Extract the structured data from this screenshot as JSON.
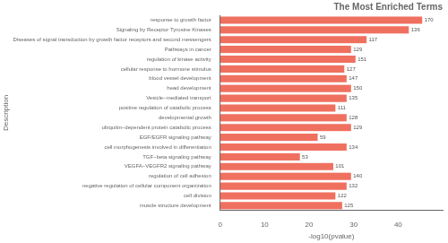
{
  "chart_data": {
    "type": "bar",
    "orientation": "horizontal",
    "title": "The Most Enriched Terms",
    "xlabel": "-log10(pvalue)",
    "ylabel": "Description",
    "color": "#F07060",
    "categories": [
      "muscle structure development",
      "cell division",
      "negative regulation of cellular component organization",
      "regulation of cell adhesion",
      "VEGFA−VEGFR2 signaling pathway",
      "TGF−beta signaling pathway",
      "cell morphogenesis involved in differentiation",
      "EGF/EGFR signaling pathway",
      "ubiquitin−dependent protein catabolic process",
      "developmental growth",
      "positive regulation of catabolic process",
      "Vesicle−mediated transport",
      "head development",
      "blood vessel development",
      "cellular response to hormone stimulus",
      "regulation of kinase activity",
      "Pathways in cancer",
      "Diseases of signal transduction by growth factor receptors and second messengers",
      "Signaling by Receptor Tyrosine Kinases",
      "response to growth factor"
    ],
    "values": [
      27.5,
      26.0,
      28.5,
      29.5,
      25.5,
      18.0,
      28.5,
      22.0,
      29.5,
      28.5,
      26.0,
      28.5,
      29.5,
      28.5,
      28.0,
      30.5,
      29.5,
      33.0,
      42.5,
      45.5
    ],
    "gene_counts": [
      125,
      122,
      132,
      140,
      101,
      53,
      134,
      59,
      129,
      128,
      111,
      135,
      150,
      147,
      127,
      151,
      129,
      117,
      136,
      170
    ],
    "xlim": [
      0,
      50
    ],
    "xticks": [
      0,
      10,
      20,
      30,
      40
    ],
    "grid": false
  }
}
